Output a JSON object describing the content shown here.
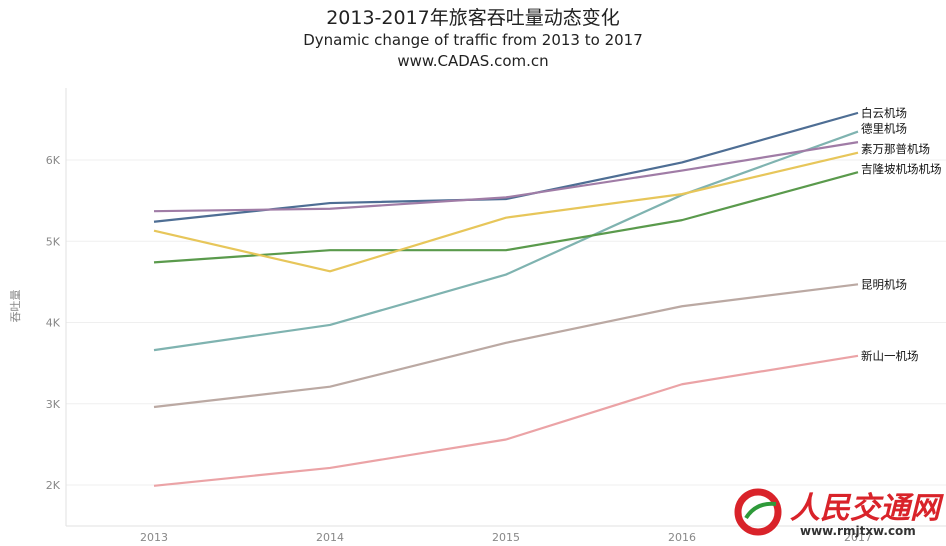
{
  "header": {
    "title": "2013-2017年旅客吞吐量动态变化",
    "subtitle": "Dynamic change of  traffic from 2013 to 2017",
    "site": "www.CADAS.com.cn"
  },
  "watermark": {
    "text": "人民交通网",
    "url": "www.rmjtxw.com"
  },
  "colors": {
    "baiyun": "#4e6e94",
    "deli": "#7fb3b0",
    "suwanna": "#a07ca6",
    "jilongpo": "#5a9a4c",
    "kunming": "#bba9a3",
    "xinshanyi": "#eba3a6",
    "extra": "#e7c65a"
  },
  "chart_data": {
    "type": "line",
    "title": "2013-2017年旅客吞吐量动态变化",
    "xlabel": "",
    "ylabel": "吞吐量",
    "x": [
      "2013",
      "2014",
      "2015",
      "2016",
      "2017"
    ],
    "ylim": [
      1600,
      7000
    ],
    "yticks": [
      2000,
      3000,
      4000,
      5000,
      6000
    ],
    "ytick_labels": [
      "2K",
      "3K",
      "4K",
      "5K",
      "6K"
    ],
    "grid": true,
    "legend": "direct labels at line ends",
    "series": [
      {
        "name": "白云机场",
        "color_key": "baiyun",
        "values": [
          5240,
          5470,
          5520,
          5970,
          6580
        ]
      },
      {
        "name": "德里机场",
        "color_key": "deli",
        "values": [
          3660,
          3970,
          4590,
          5570,
          6350
        ]
      },
      {
        "name": "素万那普机场",
        "color_key": "suwanna",
        "values": [
          5370,
          5400,
          5540,
          5870,
          6220
        ]
      },
      {
        "name": "吉隆坡机场机场",
        "color_key": "jilongpo",
        "values": [
          4740,
          4890,
          4890,
          5260,
          5850
        ]
      },
      {
        "name": "",
        "color_key": "extra",
        "values": [
          5130,
          4630,
          5290,
          5580,
          6090
        ]
      },
      {
        "name": "昆明机场",
        "color_key": "kunming",
        "values": [
          2960,
          3210,
          3750,
          4200,
          4470
        ]
      },
      {
        "name": "新山一机场",
        "color_key": "xinshanyi",
        "values": [
          1990,
          2210,
          2560,
          3240,
          3590
        ]
      }
    ]
  }
}
